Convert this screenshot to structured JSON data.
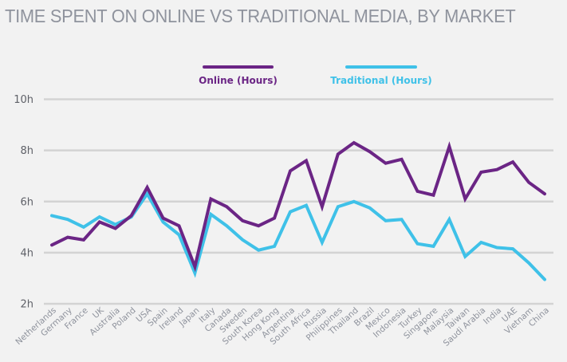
{
  "chart_data": {
    "type": "line",
    "title": "TIME SPENT ON ONLINE VS TRADITIONAL MEDIA, BY MARKET",
    "xlabel": "",
    "ylabel": "",
    "ylim": [
      2,
      10
    ],
    "yticks": [
      2,
      4,
      6,
      8,
      10
    ],
    "ytick_labels": [
      "2h",
      "4h",
      "6h",
      "8h",
      "10h"
    ],
    "grid": true,
    "legend_position": "top-center",
    "categories": [
      "Netherlands",
      "Germany",
      "France",
      "UK",
      "Australia",
      "Poland",
      "USA",
      "Spain",
      "Ireland",
      "Japan",
      "Italy",
      "Canada",
      "Sweden",
      "South Korea",
      "Hong Kong",
      "Argentina",
      "South Africa",
      "Russia",
      "Philippines",
      "Thailand",
      "Brazil",
      "Mexico",
      "Indonesia",
      "Turkey",
      "Singapore",
      "Malaysia",
      "Taiwan",
      "Saudi Arabia",
      "India",
      "UAE",
      "Vietnam",
      "China"
    ],
    "series": [
      {
        "name": "Online (Hours)",
        "color": "#6b2585",
        "values": [
          4.3,
          4.6,
          4.5,
          5.2,
          4.95,
          5.45,
          6.55,
          5.35,
          5.05,
          3.45,
          6.1,
          5.8,
          5.25,
          5.05,
          5.35,
          7.2,
          7.6,
          5.8,
          7.85,
          8.3,
          7.95,
          7.5,
          7.65,
          6.4,
          6.25,
          8.15,
          6.1,
          7.15,
          7.25,
          7.55,
          6.75,
          6.3
        ]
      },
      {
        "name": "Traditional (Hours)",
        "color": "#3fc1e8",
        "values": [
          5.45,
          5.3,
          5.0,
          5.4,
          5.1,
          5.4,
          6.3,
          5.2,
          4.7,
          3.2,
          5.5,
          5.05,
          4.5,
          4.1,
          4.25,
          5.6,
          5.85,
          4.4,
          5.8,
          6.0,
          5.75,
          5.25,
          5.3,
          4.35,
          4.25,
          5.3,
          3.85,
          4.4,
          4.2,
          4.15,
          3.6,
          2.95
        ]
      }
    ]
  }
}
